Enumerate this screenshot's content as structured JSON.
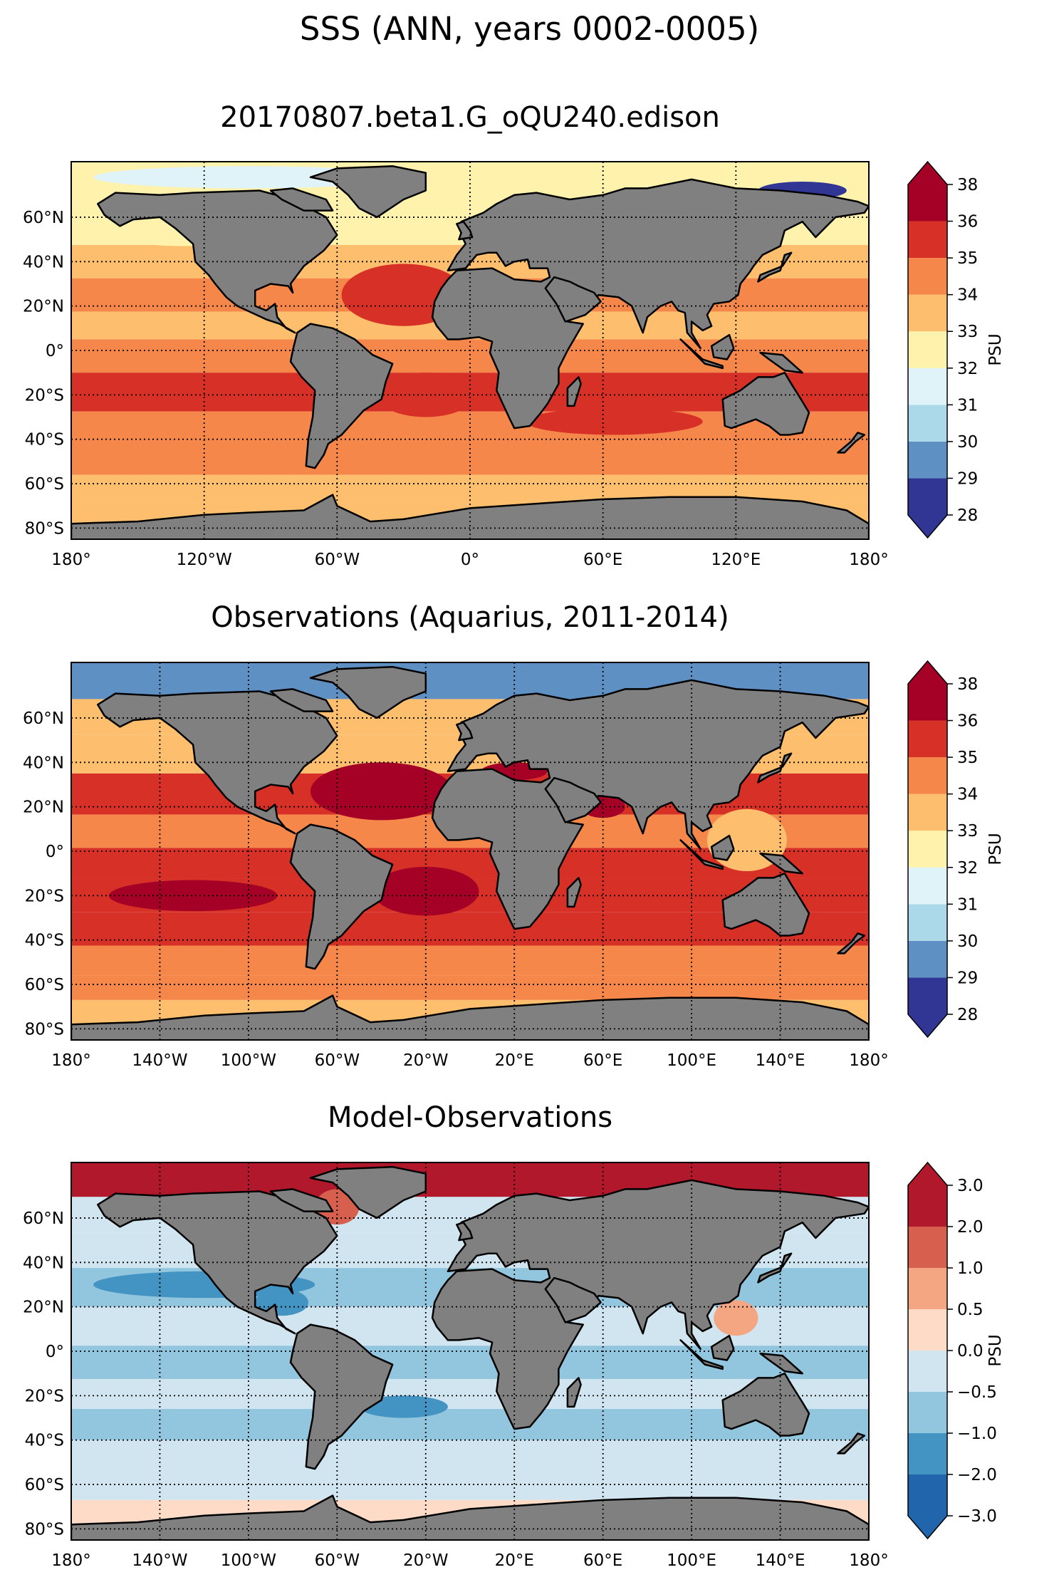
{
  "figure": {
    "title": "SSS (ANN, years 0002-0005)"
  },
  "colors": {
    "land": "#808080",
    "coast": "#000000",
    "grid": "#000000",
    "no_data": "#ffffff"
  },
  "chart_data": [
    {
      "type": "heatmap",
      "title": "20170807.beta1.G_oQU240.edison",
      "xlim": [
        -180,
        180
      ],
      "ylim": [
        -85,
        85
      ],
      "x_ticks": [
        -180,
        -120,
        -60,
        0,
        60,
        120,
        180
      ],
      "x_tick_labels": [
        "180°",
        "120°W",
        "60°W",
        "0°",
        "60°E",
        "120°E",
        "180°"
      ],
      "y_ticks": [
        60,
        40,
        20,
        0,
        -20,
        -40,
        -60,
        -80
      ],
      "y_tick_labels": [
        "60°N",
        "40°N",
        "20°N",
        "0°",
        "20°S",
        "40°S",
        "60°S",
        "80°S"
      ],
      "colorbar": {
        "label": "PSU",
        "levels": [
          28,
          29,
          30,
          31,
          32,
          33,
          34,
          35,
          36,
          38
        ],
        "tick_labels": [
          "28",
          "29",
          "30",
          "31",
          "32",
          "33",
          "34",
          "35",
          "36",
          "38"
        ],
        "colors": [
          "#313695",
          "#5f90c4",
          "#abd9e9",
          "#e0f3f8",
          "#fff2ac",
          "#fdbe6e",
          "#f6874b",
          "#d73027",
          "#a50026"
        ],
        "extend": "both"
      },
      "zones": [
        {
          "lat": 75,
          "value": 32.4
        },
        {
          "lat": 55,
          "value": 32.7
        },
        {
          "lat": 40,
          "value": 33.5
        },
        {
          "lat": 25,
          "value": 34.5
        },
        {
          "lat": 10,
          "value": 33.8
        },
        {
          "lat": 0,
          "value": 34.2
        },
        {
          "lat": -20,
          "value": 35.2
        },
        {
          "lat": -35,
          "value": 34.6
        },
        {
          "lat": -50,
          "value": 34.2
        },
        {
          "lat": -62,
          "value": 33.6
        },
        {
          "lat": -75,
          "value": 33.4
        }
      ],
      "features": [
        {
          "lon": -30,
          "lat": 25,
          "rx": 28,
          "ry": 14,
          "value": 35.6
        },
        {
          "lon": -20,
          "lat": -20,
          "rx": 22,
          "ry": 10,
          "value": 35.6
        },
        {
          "lon": -125,
          "lat": -20,
          "rx": 35,
          "ry": 7,
          "value": 35.3
        },
        {
          "lon": 65,
          "lat": -32,
          "rx": 40,
          "ry": 6,
          "value": 35.2
        },
        {
          "lon": -130,
          "lat": 55,
          "rx": 35,
          "ry": 8,
          "value": 32.6
        },
        {
          "lon": 150,
          "lat": 72,
          "rx": 20,
          "ry": 4,
          "value": 28.5
        },
        {
          "lon": -100,
          "lat": 78,
          "rx": 70,
          "ry": 5,
          "value": 31.5
        }
      ]
    },
    {
      "type": "heatmap",
      "title": "Observations (Aquarius, 2011-2014)",
      "xlim": [
        -180,
        180
      ],
      "ylim": [
        -85,
        85
      ],
      "x_ticks": [
        -180,
        -140,
        -100,
        -60,
        -20,
        20,
        60,
        100,
        140,
        180
      ],
      "x_tick_labels": [
        "180°",
        "140°W",
        "100°W",
        "60°W",
        "20°W",
        "20°E",
        "60°E",
        "100°E",
        "140°E",
        "180°"
      ],
      "y_ticks": [
        60,
        40,
        20,
        0,
        -20,
        -40,
        -60,
        -80
      ],
      "y_tick_labels": [
        "60°N",
        "40°N",
        "20°N",
        "0°",
        "20°S",
        "40°S",
        "60°S",
        "80°S"
      ],
      "colorbar": {
        "label": "PSU",
        "levels": [
          28,
          29,
          30,
          31,
          32,
          33,
          34,
          35,
          36,
          38
        ],
        "tick_labels": [
          "28",
          "29",
          "30",
          "31",
          "32",
          "33",
          "34",
          "35",
          "36",
          "38"
        ],
        "colors": [
          "#313695",
          "#5f90c4",
          "#abd9e9",
          "#e0f3f8",
          "#fff2ac",
          "#fdbe6e",
          "#f6874b",
          "#d73027",
          "#a50026"
        ],
        "extend": "both"
      },
      "zones": [
        {
          "lat": 77,
          "value": 29.2
        },
        {
          "lat": 60,
          "value": 33.2
        },
        {
          "lat": 45,
          "value": 33.8
        },
        {
          "lat": 25,
          "value": 35.3
        },
        {
          "lat": 8,
          "value": 34.1
        },
        {
          "lat": -5,
          "value": 35.1
        },
        {
          "lat": -20,
          "value": 35.6
        },
        {
          "lat": -35,
          "value": 35.2
        },
        {
          "lat": -50,
          "value": 34.4
        },
        {
          "lat": -62,
          "value": 34.1
        },
        {
          "lat": -72,
          "value": 33.8
        }
      ],
      "features": [
        {
          "lon": -40,
          "lat": 27,
          "rx": 32,
          "ry": 13,
          "value": 36.6
        },
        {
          "lon": -20,
          "lat": -18,
          "rx": 24,
          "ry": 11,
          "value": 36.6
        },
        {
          "lon": -125,
          "lat": -20,
          "rx": 38,
          "ry": 7,
          "value": 36.2
        },
        {
          "lon": 20,
          "lat": 36,
          "rx": 15,
          "ry": 4,
          "value": 37.5
        },
        {
          "lon": 60,
          "lat": 20,
          "rx": 10,
          "ry": 5,
          "value": 36.2
        },
        {
          "lon": 125,
          "lat": 5,
          "rx": 18,
          "ry": 14,
          "value": 33.5
        }
      ]
    },
    {
      "type": "heatmap",
      "title": "Model-Observations",
      "xlim": [
        -180,
        180
      ],
      "ylim": [
        -85,
        85
      ],
      "x_ticks": [
        -180,
        -140,
        -100,
        -60,
        -20,
        20,
        60,
        100,
        140,
        180
      ],
      "x_tick_labels": [
        "180°",
        "140°W",
        "100°W",
        "60°W",
        "20°W",
        "20°E",
        "60°E",
        "100°E",
        "140°E",
        "180°"
      ],
      "y_ticks": [
        60,
        40,
        20,
        0,
        -20,
        -40,
        -60,
        -80
      ],
      "y_tick_labels": [
        "60°N",
        "40°N",
        "20°N",
        "0°",
        "20°S",
        "40°S",
        "60°S",
        "80°S"
      ],
      "colorbar": {
        "label": "PSU",
        "levels": [
          -3.0,
          -2.0,
          -1.0,
          -0.5,
          0.0,
          0.5,
          1.0,
          2.0,
          3.0
        ],
        "tick_labels": [
          "−3.0",
          "−2.0",
          "−1.0",
          "−0.5",
          "0.0",
          "0.5",
          "1.0",
          "2.0",
          "3.0"
        ],
        "colors": [
          "#2166ac",
          "#4393c3",
          "#92c5de",
          "#d1e5f0",
          "#fddbc7",
          "#f4a582",
          "#d6604d",
          "#b2182b"
        ],
        "extend": "both"
      },
      "zones": [
        {
          "lat": 77,
          "value": 2.5
        },
        {
          "lat": 62,
          "value": -0.3
        },
        {
          "lat": 45,
          "value": -0.4
        },
        {
          "lat": 30,
          "value": -0.8
        },
        {
          "lat": 10,
          "value": -0.3
        },
        {
          "lat": -5,
          "value": -0.6
        },
        {
          "lat": -20,
          "value": -0.4
        },
        {
          "lat": -32,
          "value": -0.7
        },
        {
          "lat": -48,
          "value": -0.3
        },
        {
          "lat": -62,
          "value": -0.2
        },
        {
          "lat": -72,
          "value": 0.3
        }
      ],
      "features": [
        {
          "lon": -120,
          "lat": 30,
          "rx": 50,
          "ry": 6,
          "value": -1.3
        },
        {
          "lon": -30,
          "lat": -25,
          "rx": 20,
          "ry": 5,
          "value": -1.3
        },
        {
          "lon": -85,
          "lat": 22,
          "rx": 12,
          "ry": 6,
          "value": -1.6
        },
        {
          "lon": 120,
          "lat": 15,
          "rx": 10,
          "ry": 8,
          "value": 0.7
        },
        {
          "lon": -60,
          "lat": 65,
          "rx": 10,
          "ry": 8,
          "value": 1.5
        }
      ]
    }
  ]
}
